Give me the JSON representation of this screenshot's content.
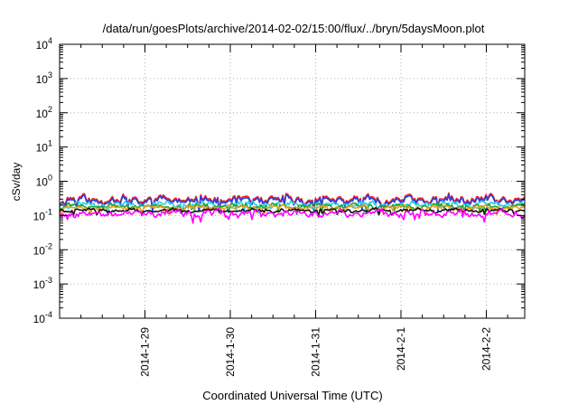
{
  "chart_data": {
    "type": "line",
    "title": "/data/run/goesPlots/archive/2014-02-02/15:00/flux/../bryn/5daysMoon.plot",
    "xlabel": "Coordinated Universal Time (UTC)",
    "ylabel": "cSv/day",
    "yscale": "log",
    "ylim": [
      0.0001,
      10000
    ],
    "xlim_days": [
      0,
      5.45
    ],
    "y_ticks": [
      {
        "base": "10",
        "exp": "-4"
      },
      {
        "base": "10",
        "exp": "-3"
      },
      {
        "base": "10",
        "exp": "-2"
      },
      {
        "base": "10",
        "exp": "-1"
      },
      {
        "base": "10",
        "exp": "0"
      },
      {
        "base": "10",
        "exp": "1"
      },
      {
        "base": "10",
        "exp": "2"
      },
      {
        "base": "10",
        "exp": "3"
      },
      {
        "base": "10",
        "exp": "4"
      }
    ],
    "x_ticks": [
      {
        "label": "2014-1-29",
        "day": 1.0
      },
      {
        "label": "2014-1-30",
        "day": 2.0
      },
      {
        "label": "2014-1-31",
        "day": 3.0
      },
      {
        "label": "2014-2-1",
        "day": 4.0
      },
      {
        "label": "2014-2-2",
        "day": 5.0
      }
    ],
    "grid": true,
    "series": [
      {
        "name": "series-red",
        "color": "#e8202a",
        "base": 0.3,
        "amp": 0.55,
        "seed": 11
      },
      {
        "name": "series-blue",
        "color": "#2a3ce0",
        "base": 0.27,
        "amp": 0.55,
        "seed": 11
      },
      {
        "name": "series-cyan",
        "color": "#22d3e6",
        "base": 0.21,
        "amp": 0.4,
        "seed": 23
      },
      {
        "name": "series-green",
        "color": "#20a030",
        "base": 0.185,
        "amp": 0.35,
        "seed": 31
      },
      {
        "name": "series-orange",
        "color": "#e8a020",
        "base": 0.17,
        "amp": 0.3,
        "seed": 37
      },
      {
        "name": "series-black",
        "color": "#111111",
        "base": 0.14,
        "amp": 0.25,
        "seed": 41
      },
      {
        "name": "series-magenta",
        "color": "#ff00ff",
        "base": 0.115,
        "amp": 0.45,
        "seed": 53
      }
    ]
  }
}
